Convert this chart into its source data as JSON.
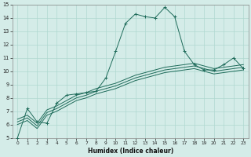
{
  "xlabel": "Humidex (Indice chaleur)",
  "bg_color": "#d4ece8",
  "grid_color": "#afd8d0",
  "line_color": "#1e6b5a",
  "xlim": [
    -0.5,
    23.5
  ],
  "ylim": [
    5,
    15
  ],
  "xticks": [
    0,
    1,
    2,
    3,
    4,
    5,
    6,
    7,
    8,
    9,
    10,
    11,
    12,
    13,
    14,
    15,
    16,
    17,
    18,
    19,
    20,
    21,
    22,
    23
  ],
  "yticks": [
    5,
    6,
    7,
    8,
    9,
    10,
    11,
    12,
    13,
    14,
    15
  ],
  "series1_x": [
    0,
    1,
    2,
    3,
    4,
    5,
    6,
    7,
    8,
    9,
    10,
    11,
    12,
    13,
    14,
    15,
    16,
    17,
    18,
    19,
    20,
    21,
    22,
    23
  ],
  "series1_y": [
    5.0,
    7.2,
    6.2,
    6.1,
    7.6,
    8.2,
    8.3,
    8.4,
    8.5,
    9.5,
    11.5,
    13.6,
    14.3,
    14.1,
    14.0,
    14.8,
    14.1,
    11.5,
    10.5,
    10.1,
    10.1,
    10.5,
    11.0,
    10.2
  ],
  "series2_x": [
    0,
    1,
    2,
    3,
    4,
    5,
    6,
    7,
    8,
    9,
    10,
    11,
    12,
    13,
    14,
    15,
    16,
    17,
    18,
    19,
    20,
    21,
    22,
    23
  ],
  "series2_y": [
    6.0,
    6.3,
    5.7,
    6.7,
    7.0,
    7.4,
    7.8,
    8.0,
    8.3,
    8.5,
    8.7,
    9.0,
    9.3,
    9.5,
    9.7,
    9.9,
    10.0,
    10.1,
    10.2,
    10.0,
    9.8,
    9.9,
    10.0,
    10.1
  ],
  "series3_x": [
    0,
    1,
    2,
    3,
    4,
    5,
    6,
    7,
    8,
    9,
    10,
    11,
    12,
    13,
    14,
    15,
    16,
    17,
    18,
    19,
    20,
    21,
    22,
    23
  ],
  "series3_y": [
    6.2,
    6.5,
    5.9,
    6.9,
    7.2,
    7.6,
    8.0,
    8.2,
    8.5,
    8.7,
    8.9,
    9.2,
    9.5,
    9.7,
    9.9,
    10.1,
    10.2,
    10.3,
    10.4,
    10.2,
    10.0,
    10.1,
    10.2,
    10.3
  ],
  "series4_x": [
    0,
    1,
    2,
    3,
    4,
    5,
    6,
    7,
    8,
    9,
    10,
    11,
    12,
    13,
    14,
    15,
    16,
    17,
    18,
    19,
    20,
    21,
    22,
    23
  ],
  "series4_y": [
    6.4,
    6.7,
    6.1,
    7.1,
    7.4,
    7.8,
    8.2,
    8.4,
    8.7,
    8.9,
    9.1,
    9.4,
    9.7,
    9.9,
    10.1,
    10.3,
    10.4,
    10.5,
    10.6,
    10.4,
    10.2,
    10.3,
    10.4,
    10.5
  ]
}
